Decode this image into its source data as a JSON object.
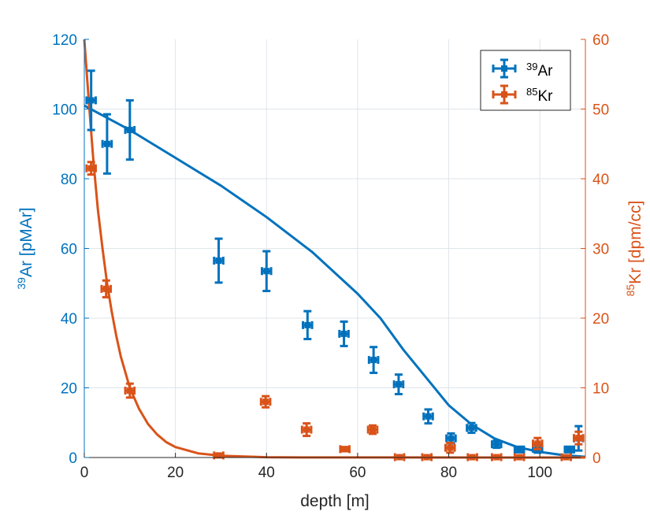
{
  "colors": {
    "ar": "#0072BD",
    "kr": "#D95319",
    "grid": "#dfe5ea",
    "axis": "#262626"
  },
  "chart_data": {
    "type": "scatter",
    "x_axis": {
      "label": "depth [m]",
      "range": [
        0,
        110
      ],
      "ticks": [
        0,
        20,
        40,
        60,
        80,
        100
      ]
    },
    "y_left": {
      "label_sup": "39",
      "label_main": "Ar [pMAr]",
      "range": [
        0,
        120
      ],
      "ticks": [
        0,
        20,
        40,
        60,
        80,
        100,
        120
      ]
    },
    "y_right": {
      "label_sup": "85",
      "label_main": "Kr [dpm/cc]",
      "range": [
        0,
        60
      ],
      "ticks": [
        0,
        10,
        20,
        30,
        40,
        50,
        60
      ]
    },
    "grid": true,
    "legend_position": "top-right",
    "series": [
      {
        "name": "39Ar",
        "legend_sup": "39",
        "legend_main": "Ar",
        "axis": "left",
        "color": "#0072BD",
        "points": [
          {
            "x": 1.5,
            "y": 102.5,
            "yerr": 8.5,
            "xerr": 1.0
          },
          {
            "x": 5,
            "y": 90,
            "yerr": 8.5,
            "xerr": 1.0
          },
          {
            "x": 10,
            "y": 94,
            "yerr": 8.5,
            "xerr": 1.0
          },
          {
            "x": 29.5,
            "y": 56.5,
            "yerr": 6.3,
            "xerr": 1.0
          },
          {
            "x": 40,
            "y": 53.5,
            "yerr": 5.7,
            "xerr": 1.0
          },
          {
            "x": 49,
            "y": 38,
            "yerr": 4.0,
            "xerr": 1.0
          },
          {
            "x": 57,
            "y": 35.5,
            "yerr": 3.5,
            "xerr": 1.0
          },
          {
            "x": 63.5,
            "y": 28,
            "yerr": 3.7,
            "xerr": 1.0
          },
          {
            "x": 69,
            "y": 21,
            "yerr": 2.8,
            "xerr": 1.0
          },
          {
            "x": 75.5,
            "y": 11.8,
            "yerr": 2.0,
            "xerr": 1.0
          },
          {
            "x": 80.5,
            "y": 5.5,
            "yerr": 1.4,
            "xerr": 1.0
          },
          {
            "x": 85,
            "y": 8.5,
            "yerr": 1.4,
            "xerr": 1.0
          },
          {
            "x": 90.5,
            "y": 3.8,
            "yerr": 1.0,
            "xerr": 1.0
          },
          {
            "x": 95.5,
            "y": 2.3,
            "yerr": 0.8,
            "xerr": 1.0
          },
          {
            "x": 99.5,
            "y": 2.5,
            "yerr": 1.1,
            "xerr": 1.0
          },
          {
            "x": 106.5,
            "y": 2.3,
            "yerr": 0.8,
            "xerr": 1.0
          },
          {
            "x": 108.5,
            "y": 5.5,
            "yerr": 3.5,
            "xerr": 1.0
          }
        ]
      },
      {
        "name": "85Kr",
        "legend_sup": "85",
        "legend_main": "Kr",
        "axis": "right",
        "color": "#D95319",
        "points": [
          {
            "x": 1.5,
            "y": 41.5,
            "yerr": 0.9,
            "xerr": 1.0
          },
          {
            "x": 4.8,
            "y": 24.2,
            "yerr": 1.2,
            "xerr": 1.0
          },
          {
            "x": 10,
            "y": 9.6,
            "yerr": 1.0,
            "xerr": 1.0
          },
          {
            "x": 29.5,
            "y": 0.3,
            "yerr": 0.2,
            "xerr": 1.0
          },
          {
            "x": 39.8,
            "y": 8.0,
            "yerr": 0.8,
            "xerr": 1.0
          },
          {
            "x": 48.8,
            "y": 4.0,
            "yerr": 0.9,
            "xerr": 1.0
          },
          {
            "x": 57.2,
            "y": 1.2,
            "yerr": 0.3,
            "xerr": 1.0
          },
          {
            "x": 63.3,
            "y": 4.0,
            "yerr": 0.6,
            "xerr": 1.0
          },
          {
            "x": 69.2,
            "y": 0.05,
            "yerr": 0.1,
            "xerr": 1.0
          },
          {
            "x": 75.2,
            "y": 0.05,
            "yerr": 0.1,
            "xerr": 1.0
          },
          {
            "x": 80.3,
            "y": 1.4,
            "yerr": 0.7,
            "xerr": 1.0
          },
          {
            "x": 85.2,
            "y": 0.05,
            "yerr": 0.1,
            "xerr": 1.0
          },
          {
            "x": 90.5,
            "y": 0.05,
            "yerr": 0.1,
            "xerr": 1.0
          },
          {
            "x": 95.5,
            "y": 0.05,
            "yerr": 0.1,
            "xerr": 1.0
          },
          {
            "x": 99.5,
            "y": 2.0,
            "yerr": 0.8,
            "xerr": 1.0
          },
          {
            "x": 105.8,
            "y": 0.05,
            "yerr": 0.1,
            "xerr": 1.0
          },
          {
            "x": 108.5,
            "y": 2.8,
            "yerr": 0.9,
            "xerr": 1.0
          }
        ]
      }
    ],
    "fits": [
      {
        "axis": "left",
        "color": "#0072BD",
        "points": [
          [
            0,
            101
          ],
          [
            10,
            94
          ],
          [
            20,
            86
          ],
          [
            30,
            78
          ],
          [
            40,
            69
          ],
          [
            50,
            59
          ],
          [
            60,
            47
          ],
          [
            65,
            40
          ],
          [
            70,
            31
          ],
          [
            75,
            23
          ],
          [
            80,
            15
          ],
          [
            85,
            9.5
          ],
          [
            90,
            5.5
          ],
          [
            95,
            3
          ],
          [
            100,
            1.6
          ],
          [
            105,
            0.7
          ],
          [
            110,
            0.2
          ]
        ]
      },
      {
        "axis": "right",
        "color": "#D95319",
        "points": [
          [
            0,
            60
          ],
          [
            1,
            51
          ],
          [
            2,
            42.5
          ],
          [
            3,
            35.5
          ],
          [
            4,
            30
          ],
          [
            5,
            25
          ],
          [
            6,
            21
          ],
          [
            7,
            17.5
          ],
          [
            8,
            14.5
          ],
          [
            10,
            10
          ],
          [
            12,
            7
          ],
          [
            14,
            4.8
          ],
          [
            16,
            3.3
          ],
          [
            18,
            2.2
          ],
          [
            20,
            1.5
          ],
          [
            25,
            0.6
          ],
          [
            30,
            0.25
          ],
          [
            40,
            0.05
          ],
          [
            50,
            0.01
          ],
          [
            110,
            0.0
          ]
        ]
      }
    ]
  }
}
